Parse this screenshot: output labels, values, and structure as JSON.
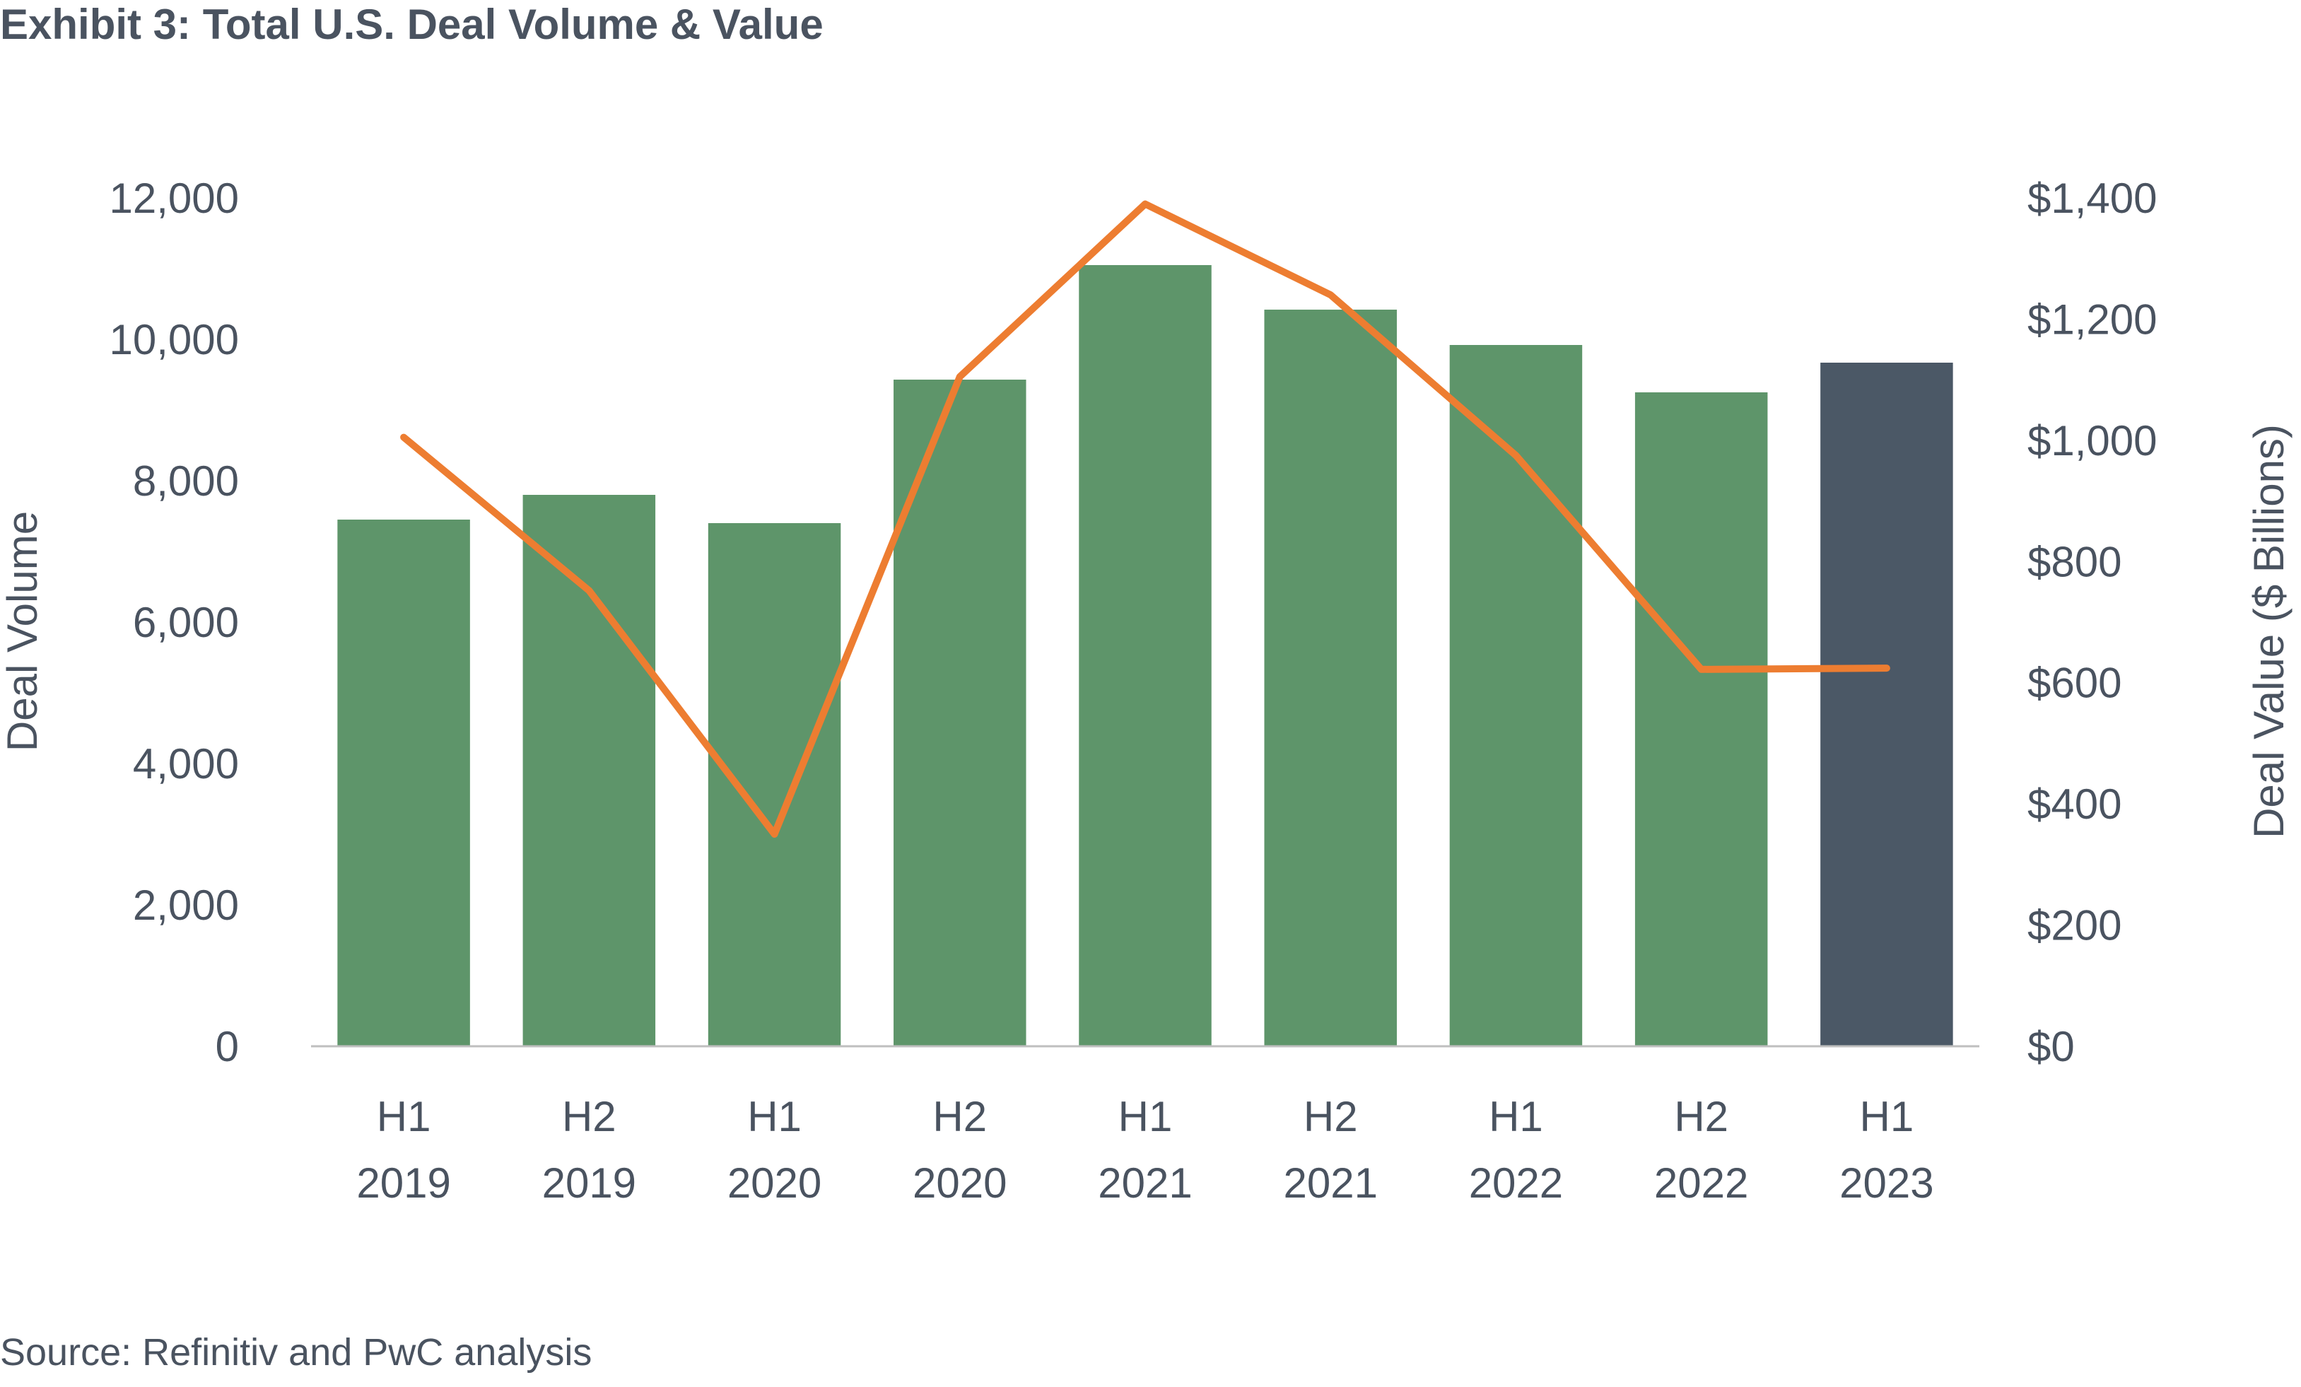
{
  "title": "Exhibit 3: Total U.S. Deal Volume & Value",
  "source": "Source: Refinitiv and PwC analysis",
  "colors": {
    "bar": "#5e956a",
    "bar_highlight": "#4b5866",
    "line": "#ed7d31",
    "text": "#4a5360",
    "axis": "#bfbfbf"
  },
  "chart_data": {
    "type": "bar",
    "categories": [
      [
        "H1",
        "2019"
      ],
      [
        "H2",
        "2019"
      ],
      [
        "H1",
        "2020"
      ],
      [
        "H2",
        "2020"
      ],
      [
        "H1",
        "2021"
      ],
      [
        "H2",
        "2021"
      ],
      [
        "H1",
        "2022"
      ],
      [
        "H2",
        "2022"
      ],
      [
        "H1",
        "2023"
      ]
    ],
    "series": [
      {
        "type": "bar",
        "axis": "left",
        "values": [
          7450,
          7800,
          7400,
          9430,
          11050,
          10420,
          9920,
          9250,
          9670
        ],
        "highlight_index": 8
      },
      {
        "type": "line",
        "axis": "right",
        "values": [
          1005,
          752,
          350,
          1105,
          1390,
          1240,
          975,
          622,
          624
        ]
      }
    ],
    "ylabel": "Deal Volume",
    "ylabel_right": "Deal Value ($ Billions)",
    "ylim": [
      0,
      12000
    ],
    "ylim_right": [
      0,
      1400
    ],
    "yticks": [
      "0",
      "2,000",
      "4,000",
      "6,000",
      "8,000",
      "10,000",
      "12,000"
    ],
    "yticks_right": [
      "$0",
      "$200",
      "$400",
      "$600",
      "$800",
      "$1,000",
      "$1,200",
      "$1,400"
    ],
    "grid": false,
    "legend": "none"
  }
}
